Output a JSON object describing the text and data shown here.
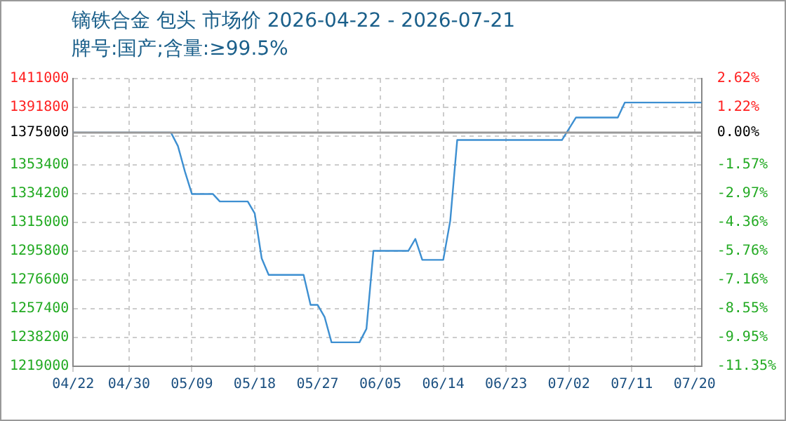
{
  "chart_data": {
    "type": "line",
    "title": "镝铁合金 包头 市场价 2026-04-22 - 2026-07-21",
    "subtitle": "牌号:国产;含量:≥99.5%",
    "x": [
      "2026-04-22",
      "2026-05-06",
      "2026-05-07",
      "2026-05-08",
      "2026-05-09",
      "2026-05-12",
      "2026-05-13",
      "2026-05-17",
      "2026-05-18",
      "2026-05-19",
      "2026-05-20",
      "2026-05-25",
      "2026-05-26",
      "2026-05-27",
      "2026-05-28",
      "2026-05-29",
      "2026-06-02",
      "2026-06-03",
      "2026-06-04",
      "2026-06-09",
      "2026-06-10",
      "2026-06-11",
      "2026-06-14",
      "2026-06-15",
      "2026-06-16",
      "2026-07-01",
      "2026-07-03",
      "2026-07-09",
      "2026-07-10",
      "2026-07-21"
    ],
    "series": [
      {
        "color": "#3d8fd1",
        "values": [
          1375000,
          1375000,
          1366000,
          1349000,
          1334000,
          1334000,
          1329000,
          1329000,
          1321000,
          1291000,
          1280000,
          1280000,
          1260000,
          1260000,
          1252000,
          1235000,
          1235000,
          1244000,
          1296000,
          1296000,
          1304000,
          1290000,
          1290000,
          1316000,
          1370000,
          1370000,
          1385000,
          1385000,
          1395000,
          1395000
        ]
      }
    ],
    "xlim": [
      "2026-04-22",
      "2026-07-21"
    ],
    "xticks": [
      {
        "value": "2026-04-22",
        "label": "04/22"
      },
      {
        "value": "2026-04-30",
        "label": "04/30"
      },
      {
        "value": "2026-05-09",
        "label": "05/09"
      },
      {
        "value": "2026-05-18",
        "label": "05/18"
      },
      {
        "value": "2026-05-27",
        "label": "05/27"
      },
      {
        "value": "2026-06-05",
        "label": "06/05"
      },
      {
        "value": "2026-06-14",
        "label": "06/14"
      },
      {
        "value": "2026-06-23",
        "label": "06/23"
      },
      {
        "value": "2026-07-02",
        "label": "07/02"
      },
      {
        "value": "2026-07-11",
        "label": "07/11"
      },
      {
        "value": "2026-07-20",
        "label": "07/20"
      }
    ],
    "ylim": [
      1219000,
      1411000
    ],
    "yticks": [
      1219000,
      1238200,
      1257400,
      1276600,
      1295800,
      1315000,
      1334200,
      1353400,
      {
        "value": 1372600,
        "label": null
      },
      1375000,
      1391800,
      1411000
    ],
    "y2lim": [
      -11.35,
      2.62
    ],
    "y2ticks": [
      {
        "value": -11.35,
        "label": "-11.35%"
      },
      {
        "value": -9.95,
        "label": "-9.95%"
      },
      {
        "value": -8.55,
        "label": "-8.55%"
      },
      {
        "value": -7.16,
        "label": "-7.16%"
      },
      {
        "value": -5.76,
        "label": "-5.76%"
      },
      {
        "value": -4.36,
        "label": "-4.36%"
      },
      {
        "value": -2.97,
        "label": "-2.97%"
      },
      {
        "value": -1.57,
        "label": "-1.57%"
      },
      {
        "value": 0,
        "label": "0.00%"
      },
      {
        "value": 1.22,
        "label": "1.22%"
      },
      {
        "value": 2.62,
        "label": "2.62%"
      }
    ],
    "ref_lines": [
      {
        "axis": "y",
        "value": 1375000,
        "color": "#999999"
      }
    ],
    "grid": true,
    "legend": false,
    "marker": "none",
    "line_style": "solid"
  }
}
